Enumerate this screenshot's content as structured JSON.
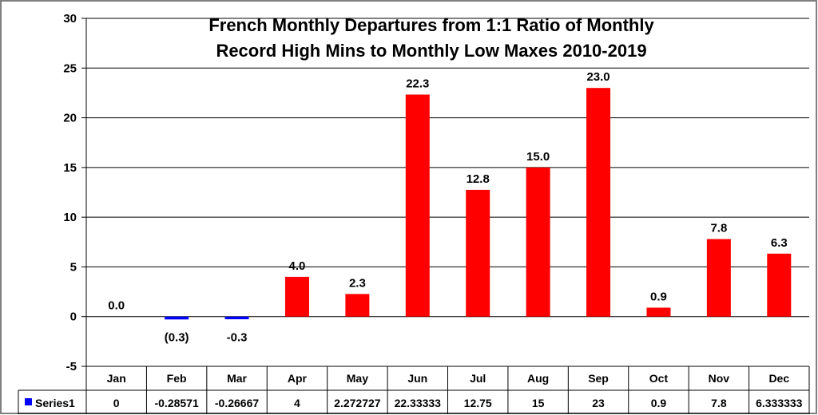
{
  "chart_data": {
    "type": "bar",
    "title_lines": [
      "French Monthly Departures from 1:1 Ratio of Monthly",
      "Record High Mins to Monthly Low Maxes 2010-2019"
    ],
    "categories": [
      "Jan",
      "Feb",
      "Mar",
      "Apr",
      "May",
      "Jun",
      "Jul",
      "Aug",
      "Sep",
      "Oct",
      "Nov",
      "Dec"
    ],
    "series": [
      {
        "name": "Series1",
        "values": [
          0,
          -0.28571,
          -0.26667,
          4,
          2.272727,
          22.33333,
          12.75,
          15,
          23,
          0.9,
          7.8,
          6.333333
        ],
        "table_values": [
          "0",
          "-0.28571",
          "-0.26667",
          "4",
          "2.272727",
          "22.33333",
          "12.75",
          "15",
          "23",
          "0.9",
          "7.8",
          "6.333333"
        ],
        "data_labels": [
          "0.0",
          "(0.3)",
          "-0.3",
          "4.0",
          "2.3",
          "22.3",
          "12.8",
          "15.0",
          "23.0",
          "0.9",
          "7.8",
          "6.3"
        ]
      }
    ],
    "ylim": [
      -5,
      30
    ],
    "yticks": [
      "-5",
      "0",
      "5",
      "10",
      "15",
      "20",
      "25",
      "30"
    ],
    "grid": "horizontal",
    "data_table": true,
    "colors": {
      "positive": "#ff0000",
      "negative": "#0000ff",
      "legend_key": "#0000ff",
      "feb_label": "#0000ff",
      "grid": "#000000"
    }
  }
}
